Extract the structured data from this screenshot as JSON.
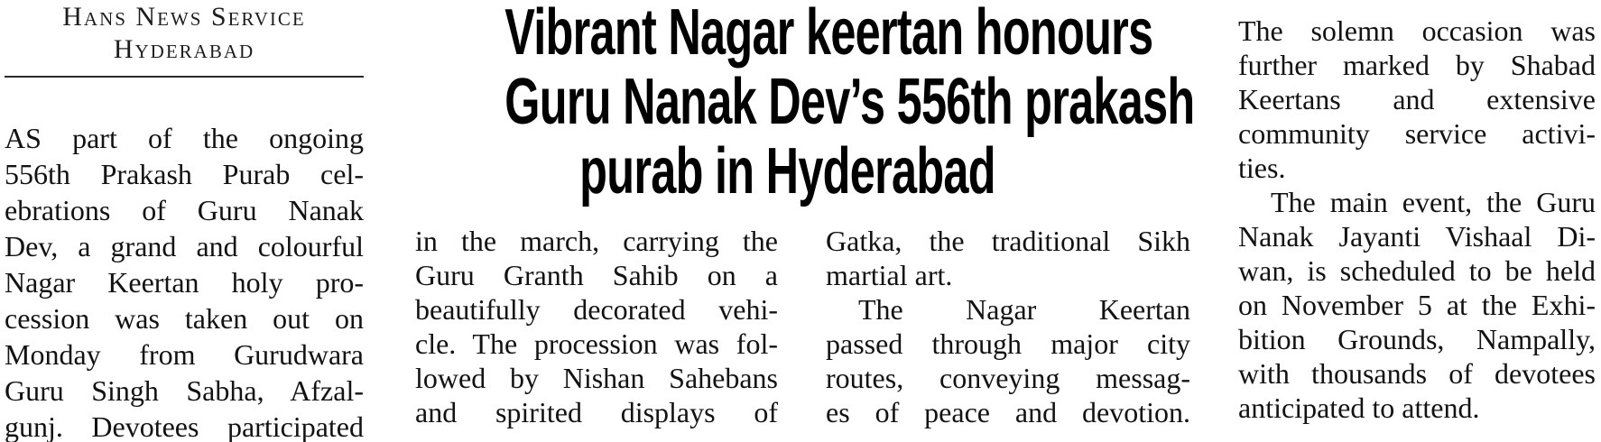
{
  "colors": {
    "background": "#ffffff",
    "body_text": "#141414",
    "headline_text": "#000000",
    "rule": "#2a2a2a"
  },
  "byline": {
    "agency": "Hans News Service",
    "city": "Hyderabad"
  },
  "headline": {
    "lines": [
      "Vibrant Nagar keertan honours",
      "Guru Nanak Dev’s 556th prakash",
      "purab in Hyderabad"
    ]
  },
  "article": {
    "col1": [
      "AS part of the ongoing",
      "556th Prakash Purab cel-",
      "ebrations of Guru Nanak",
      "Dev, a grand and colourful",
      "Nagar Keertan holy pro-",
      "cession was taken out on",
      "Monday from Gurudwara",
      "Guru Singh Sabha, Afzal-",
      "gunj. Devotees participated"
    ],
    "col2": [
      "in the march, carrying the",
      "Guru Granth Sahib on a",
      "beautifully decorated vehi-",
      "cle. The procession was fol-",
      "lowed by Nishan Sahebans",
      "and spirited displays of"
    ],
    "col3": [
      "Gatka, the traditional Sikh",
      "martial art.",
      "The Nagar Keertan",
      "passed through major city",
      "routes, conveying messag-",
      "es of peace and devotion."
    ],
    "col4": [
      "The solemn occasion was",
      "further marked by Shabad",
      "Keertans and extensive",
      "community service activi-",
      "ties.",
      "The main event, the Guru",
      "Nanak Jayanti Vishaal Di-",
      "wan, is scheduled to be held",
      "on November 5 at the Exhi-",
      "bition Grounds, Nampally,",
      "with thousands of devotees",
      "anticipated to attend."
    ]
  }
}
